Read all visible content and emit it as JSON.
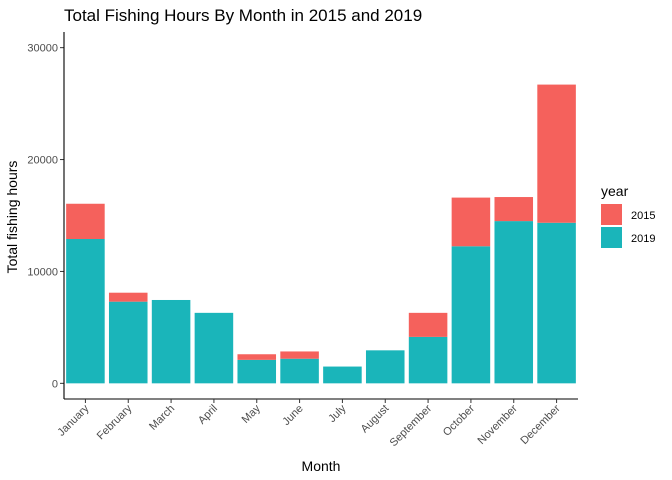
{
  "chart_data": {
    "type": "bar",
    "stacked": true,
    "title": "Total Fishing Hours By Month in 2015 and 2019",
    "xlabel": "Month",
    "ylabel": "Total fishing hours",
    "ylim": [
      -1400,
      31400
    ],
    "yticks": [
      0,
      10000,
      20000,
      30000
    ],
    "ytick_labels": [
      "0",
      "10000",
      "20000",
      "30000"
    ],
    "grid": false,
    "legend_position": "right",
    "legend_title": "year",
    "categories": [
      "January",
      "February",
      "March",
      "April",
      "May",
      "June",
      "July",
      "August",
      "September",
      "October",
      "November",
      "December"
    ],
    "series": [
      {
        "name": "2019",
        "color": "#1ab5ba",
        "values": [
          12900,
          7300,
          7450,
          6300,
          2100,
          2200,
          1500,
          2950,
          4150,
          12250,
          14500,
          14350
        ]
      },
      {
        "name": "2015",
        "color": "#f5615c",
        "values": [
          3150,
          800,
          0,
          0,
          500,
          650,
          0,
          0,
          2150,
          4350,
          2150,
          12350
        ]
      }
    ],
    "legend_order": [
      "2015",
      "2019"
    ]
  }
}
